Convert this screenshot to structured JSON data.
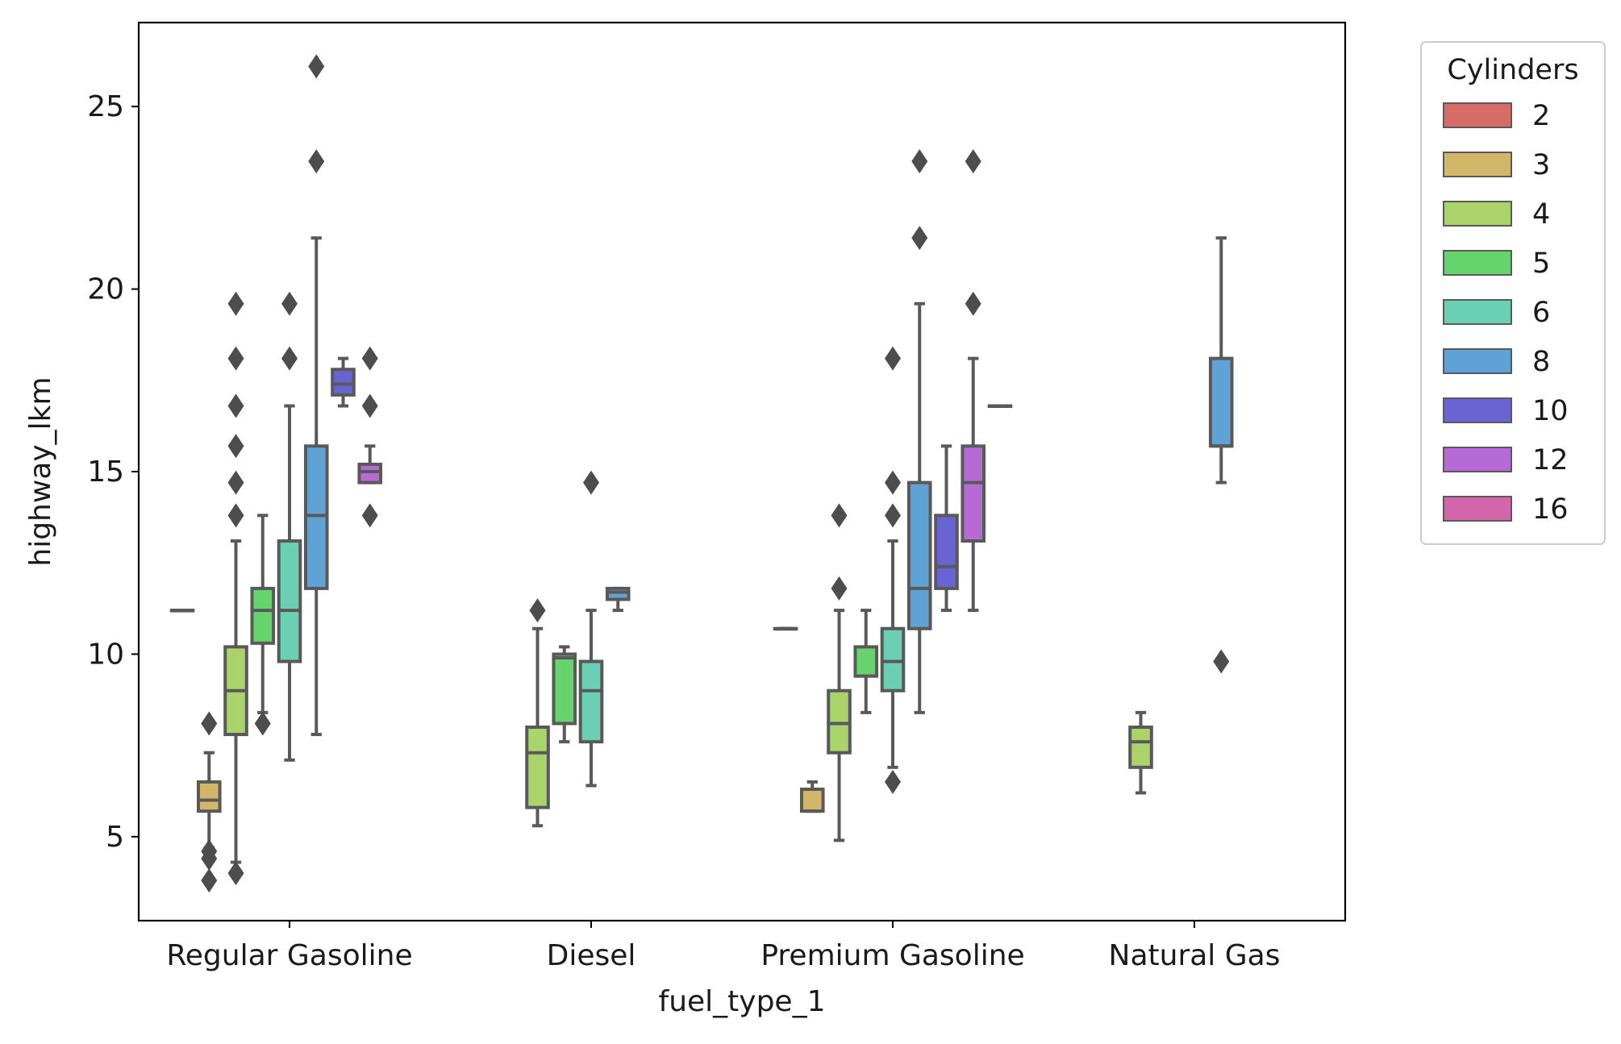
{
  "chart_data": {
    "type": "box",
    "xlabel": "fuel_type_1",
    "ylabel": "highway_lkm",
    "categories": [
      "Regular Gasoline",
      "Diesel",
      "Premium Gasoline",
      "Natural Gas"
    ],
    "ylim": [
      2.7,
      27.3
    ],
    "yticks": [
      5,
      10,
      15,
      20,
      25
    ],
    "grid": false,
    "legend": {
      "title": "Cylinders",
      "placement": "outside-upper-right",
      "entries": [
        "2",
        "3",
        "4",
        "5",
        "6",
        "8",
        "10",
        "12",
        "16"
      ]
    },
    "hue_colors": {
      "2": "#d76b65",
      "3": "#d2b76a",
      "4": "#aad46a",
      "5": "#67d36e",
      "6": "#6acfb3",
      "8": "#5fa3d6",
      "10": "#6a63d4",
      "12": "#b76ad6",
      "16": "#d465aa"
    },
    "boxes": [
      {
        "category": "Regular Gasoline",
        "cylinders": "2",
        "whislo": 11.2,
        "q1": 11.2,
        "med": 11.2,
        "q3": 11.2,
        "whishi": 11.2,
        "fliers": []
      },
      {
        "category": "Regular Gasoline",
        "cylinders": "3",
        "whislo": 4.7,
        "q1": 5.7,
        "med": 6.0,
        "q3": 6.5,
        "whishi": 7.3,
        "fliers": [
          8.1,
          4.6,
          4.4,
          3.8
        ]
      },
      {
        "category": "Regular Gasoline",
        "cylinders": "4",
        "whislo": 4.3,
        "q1": 7.8,
        "med": 9.0,
        "q3": 10.2,
        "whishi": 13.1,
        "fliers": [
          19.6,
          18.1,
          16.8,
          15.7,
          14.7,
          13.8,
          4.0
        ]
      },
      {
        "category": "Regular Gasoline",
        "cylinders": "5",
        "whislo": 8.4,
        "q1": 10.3,
        "med": 11.2,
        "q3": 11.8,
        "whishi": 13.8,
        "fliers": [
          8.1
        ]
      },
      {
        "category": "Regular Gasoline",
        "cylinders": "6",
        "whislo": 7.1,
        "q1": 9.8,
        "med": 11.2,
        "q3": 13.1,
        "whishi": 16.8,
        "fliers": [
          19.6,
          18.1
        ]
      },
      {
        "category": "Regular Gasoline",
        "cylinders": "8",
        "whislo": 7.8,
        "q1": 11.8,
        "med": 13.8,
        "q3": 15.7,
        "whishi": 21.4,
        "fliers": [
          26.1,
          23.5
        ]
      },
      {
        "category": "Regular Gasoline",
        "cylinders": "10",
        "whislo": 16.8,
        "q1": 17.1,
        "med": 17.4,
        "q3": 17.8,
        "whishi": 18.1,
        "fliers": []
      },
      {
        "category": "Regular Gasoline",
        "cylinders": "12",
        "whislo": 14.7,
        "q1": 14.7,
        "med": 15.0,
        "q3": 15.2,
        "whishi": 15.7,
        "fliers": [
          18.1,
          16.8,
          13.8
        ]
      },
      {
        "category": "Diesel",
        "cylinders": "4",
        "whislo": 5.3,
        "q1": 5.8,
        "med": 7.3,
        "q3": 8.0,
        "whishi": 10.7,
        "fliers": [
          11.2
        ]
      },
      {
        "category": "Diesel",
        "cylinders": "5",
        "whislo": 7.6,
        "q1": 8.1,
        "med": 9.9,
        "q3": 10.0,
        "whishi": 10.2,
        "fliers": []
      },
      {
        "category": "Diesel",
        "cylinders": "6",
        "whislo": 6.4,
        "q1": 7.6,
        "med": 9.0,
        "q3": 9.8,
        "whishi": 11.2,
        "fliers": [
          14.7
        ]
      },
      {
        "category": "Diesel",
        "cylinders": "8",
        "whislo": 11.2,
        "q1": 11.5,
        "med": 11.7,
        "q3": 11.8,
        "whishi": 11.8,
        "fliers": []
      },
      {
        "category": "Premium Gasoline",
        "cylinders": "2",
        "whislo": 10.7,
        "q1": 10.7,
        "med": 10.7,
        "q3": 10.7,
        "whishi": 10.7,
        "fliers": []
      },
      {
        "category": "Premium Gasoline",
        "cylinders": "3",
        "whislo": 5.7,
        "q1": 5.7,
        "med": 5.7,
        "q3": 6.3,
        "whishi": 6.5,
        "fliers": []
      },
      {
        "category": "Premium Gasoline",
        "cylinders": "4",
        "whislo": 4.9,
        "q1": 7.3,
        "med": 8.1,
        "q3": 9.0,
        "whishi": 11.2,
        "fliers": [
          13.8,
          11.8
        ]
      },
      {
        "category": "Premium Gasoline",
        "cylinders": "5",
        "whislo": 8.4,
        "q1": 9.4,
        "med": 9.4,
        "q3": 10.2,
        "whishi": 11.2,
        "fliers": []
      },
      {
        "category": "Premium Gasoline",
        "cylinders": "6",
        "whislo": 6.9,
        "q1": 9.0,
        "med": 9.8,
        "q3": 10.7,
        "whishi": 13.1,
        "fliers": [
          18.1,
          14.7,
          13.8,
          6.5
        ]
      },
      {
        "category": "Premium Gasoline",
        "cylinders": "8",
        "whislo": 8.4,
        "q1": 10.7,
        "med": 11.8,
        "q3": 14.7,
        "whishi": 19.6,
        "fliers": [
          23.5,
          21.4
        ]
      },
      {
        "category": "Premium Gasoline",
        "cylinders": "10",
        "whislo": 11.2,
        "q1": 11.8,
        "med": 12.4,
        "q3": 13.8,
        "whishi": 15.7,
        "fliers": []
      },
      {
        "category": "Premium Gasoline",
        "cylinders": "12",
        "whislo": 11.2,
        "q1": 13.1,
        "med": 14.7,
        "q3": 15.7,
        "whishi": 18.1,
        "fliers": [
          23.5,
          19.6
        ]
      },
      {
        "category": "Premium Gasoline",
        "cylinders": "16",
        "whislo": 16.8,
        "q1": 16.8,
        "med": 16.8,
        "q3": 16.8,
        "whishi": 16.8,
        "fliers": []
      },
      {
        "category": "Natural Gas",
        "cylinders": "4",
        "whislo": 6.2,
        "q1": 6.9,
        "med": 7.6,
        "q3": 8.0,
        "whishi": 8.4,
        "fliers": []
      },
      {
        "category": "Natural Gas",
        "cylinders": "8",
        "whislo": 14.7,
        "q1": 15.7,
        "med": 15.7,
        "q3": 18.1,
        "whishi": 21.4,
        "fliers": [
          9.8
        ]
      }
    ]
  }
}
